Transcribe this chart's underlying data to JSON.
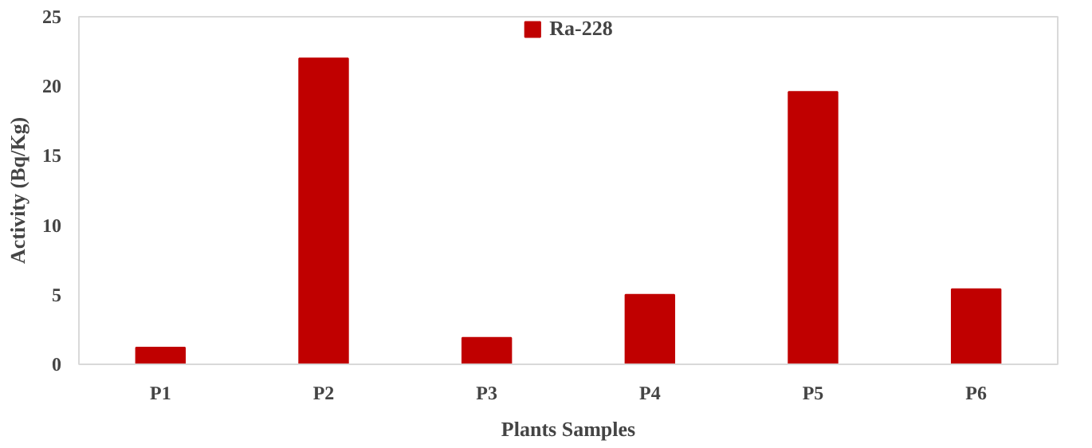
{
  "chart_data": {
    "type": "bar",
    "xlabel": "Plants Samples",
    "ylabel": "Activity (Bq/Kg)",
    "categories": [
      "P1",
      "P2",
      "P3",
      "P4",
      "P5",
      "P6"
    ],
    "series": [
      {
        "name": "Ra-228",
        "color": "#c00000",
        "values": [
          1.2,
          22.0,
          1.9,
          5.0,
          19.6,
          5.4
        ]
      }
    ],
    "ylim": [
      0,
      25
    ],
    "yticks": [
      0,
      5,
      10,
      15,
      20,
      25
    ],
    "grid": false,
    "legend": "top"
  }
}
